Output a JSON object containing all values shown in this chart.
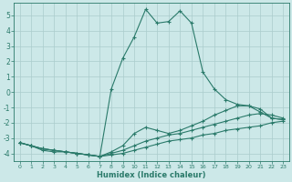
{
  "xlabel": "Humidex (Indice chaleur)",
  "xlim": [
    -0.5,
    23.5
  ],
  "ylim": [
    -4.5,
    5.8
  ],
  "yticks": [
    -4,
    -3,
    -2,
    -1,
    0,
    1,
    2,
    3,
    4,
    5
  ],
  "xticks": [
    0,
    1,
    2,
    3,
    4,
    5,
    6,
    7,
    8,
    9,
    10,
    11,
    12,
    13,
    14,
    15,
    16,
    17,
    18,
    19,
    20,
    21,
    22,
    23
  ],
  "background_color": "#cce8e8",
  "line_color": "#2a7a6a",
  "grid_color": "#aacccc",
  "lines": [
    {
      "x": [
        0,
        1,
        2,
        3,
        4,
        5,
        6,
        7,
        8,
        9,
        10,
        11,
        12,
        13,
        14,
        15,
        16,
        17,
        18,
        19,
        20,
        21,
        22,
        23
      ],
      "y": [
        -3.3,
        -3.5,
        -3.8,
        -3.9,
        -3.9,
        -4.0,
        -4.1,
        -4.2,
        -4.1,
        -4.0,
        -3.8,
        -3.6,
        -3.4,
        -3.2,
        -3.1,
        -3.0,
        -2.8,
        -2.7,
        -2.5,
        -2.4,
        -2.3,
        -2.2,
        -2.0,
        -1.9
      ]
    },
    {
      "x": [
        0,
        1,
        2,
        3,
        4,
        5,
        6,
        7,
        8,
        9,
        10,
        11,
        12,
        13,
        14,
        15,
        16,
        17,
        18,
        19,
        20,
        21,
        22,
        23
      ],
      "y": [
        -3.3,
        -3.5,
        -3.7,
        -3.8,
        -3.9,
        -4.0,
        -4.1,
        -4.2,
        -4.0,
        -3.8,
        -3.5,
        -3.2,
        -3.0,
        -2.8,
        -2.7,
        -2.5,
        -2.3,
        -2.1,
        -1.9,
        -1.7,
        -1.5,
        -1.4,
        -1.5,
        -1.7
      ]
    },
    {
      "x": [
        0,
        1,
        2,
        3,
        4,
        5,
        6,
        7,
        8,
        9,
        10,
        11,
        12,
        13,
        14,
        15,
        16,
        17,
        18,
        19,
        20,
        21,
        22,
        23
      ],
      "y": [
        -3.3,
        -3.5,
        -3.7,
        -3.8,
        -3.9,
        -4.0,
        -4.1,
        -4.2,
        0.2,
        2.2,
        3.6,
        5.4,
        4.5,
        4.6,
        5.3,
        4.5,
        1.3,
        0.2,
        -0.5,
        -0.8,
        -0.9,
        -1.3,
        -1.7,
        -1.8
      ]
    },
    {
      "x": [
        0,
        1,
        2,
        3,
        4,
        5,
        6,
        7,
        8,
        9,
        10,
        11,
        12,
        13,
        14,
        15,
        16,
        17,
        18,
        19,
        20,
        21,
        22,
        23
      ],
      "y": [
        -3.3,
        -3.5,
        -3.7,
        -3.8,
        -3.9,
        -4.0,
        -4.1,
        -4.2,
        -3.9,
        -3.5,
        -2.7,
        -2.3,
        -2.5,
        -2.7,
        -2.5,
        -2.2,
        -1.9,
        -1.5,
        -1.2,
        -0.9,
        -0.9,
        -1.1,
        -1.7,
        -1.8
      ]
    }
  ]
}
